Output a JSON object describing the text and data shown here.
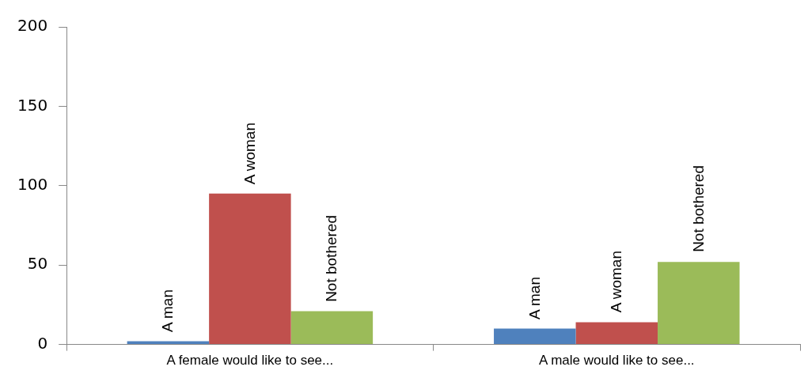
{
  "chart_data": {
    "type": "bar",
    "categories": [
      "A female would like to see...",
      "A male would like to see..."
    ],
    "series": [
      {
        "name": "A man",
        "color": "#4f81bd",
        "values": [
          2,
          10
        ]
      },
      {
        "name": "A woman",
        "color": "#c0504d",
        "values": [
          95,
          14
        ]
      },
      {
        "name": "Not bothered",
        "color": "#9bbb59",
        "values": [
          21,
          52
        ]
      }
    ],
    "ylim": [
      0,
      200
    ],
    "yticks": [
      0,
      50,
      100,
      150,
      200
    ],
    "grid": false,
    "legend": false
  }
}
